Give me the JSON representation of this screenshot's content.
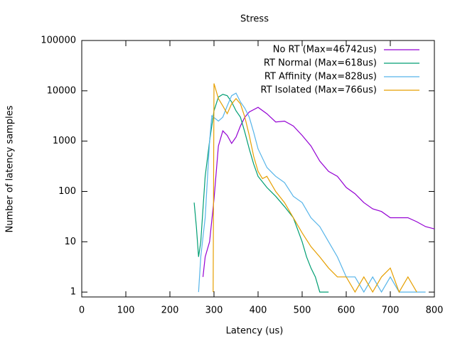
{
  "chart_data": {
    "type": "line",
    "title": "Stress",
    "xlabel": "Latency (us)",
    "ylabel": "Number of latency samples",
    "xlim": [
      0,
      800
    ],
    "xticks": [
      0,
      100,
      200,
      300,
      400,
      500,
      600,
      700,
      800
    ],
    "ylim": [
      0.8,
      100000
    ],
    "yticks": [
      1,
      10,
      100,
      1000,
      10000,
      100000
    ],
    "log_y": true,
    "legend": "top-right",
    "series": [
      {
        "name": "No RT (Max=46742us)",
        "color": "#9400d3",
        "x": [
          275,
          280,
          290,
          300,
          310,
          320,
          330,
          340,
          350,
          360,
          370,
          380,
          400,
          420,
          440,
          460,
          480,
          500,
          520,
          540,
          560,
          580,
          600,
          620,
          640,
          660,
          680,
          700,
          720,
          740,
          760,
          780,
          800
        ],
        "values": [
          2,
          5,
          10,
          70,
          800,
          1600,
          1300,
          900,
          1200,
          2000,
          3000,
          3800,
          4700,
          3500,
          2400,
          2500,
          2000,
          1300,
          800,
          400,
          250,
          200,
          120,
          90,
          60,
          45,
          40,
          30,
          30,
          30,
          25,
          20,
          18
        ]
      },
      {
        "name": "RT Normal (Max=618us)",
        "color": "#009e73",
        "x": [
          255,
          260,
          265,
          270,
          280,
          290,
          300,
          310,
          320,
          330,
          340,
          350,
          360,
          370,
          380,
          390,
          400,
          420,
          440,
          460,
          480,
          500,
          510,
          520,
          530,
          540,
          550,
          560
        ],
        "values": [
          60,
          20,
          5,
          10,
          200,
          1000,
          4000,
          7500,
          8500,
          8000,
          6000,
          4000,
          3000,
          1500,
          700,
          350,
          200,
          120,
          80,
          50,
          30,
          10,
          5,
          3,
          2,
          1,
          1,
          1
        ]
      },
      {
        "name": "RT Affinity (Max=828us)",
        "color": "#56b4e9",
        "x": [
          265,
          270,
          280,
          290,
          295,
          310,
          320,
          330,
          340,
          350,
          360,
          370,
          380,
          390,
          400,
          420,
          440,
          460,
          480,
          500,
          520,
          540,
          560,
          580,
          600,
          620,
          640,
          660,
          680,
          700,
          720,
          740,
          760,
          780
        ],
        "values": [
          1,
          5,
          30,
          1000,
          3200,
          2500,
          3000,
          5000,
          8000,
          9000,
          6000,
          4500,
          3000,
          1500,
          700,
          300,
          200,
          150,
          80,
          60,
          30,
          20,
          10,
          5,
          2,
          2,
          1,
          2,
          1,
          2,
          1,
          1,
          1,
          1
        ]
      },
      {
        "name": "RT Isolated (Max=766us)",
        "color": "#e69f00",
        "x": [
          298,
          300,
          310,
          320,
          330,
          340,
          350,
          360,
          370,
          380,
          390,
          400,
          410,
          420,
          440,
          460,
          480,
          500,
          520,
          540,
          560,
          580,
          600,
          620,
          640,
          660,
          680,
          700,
          720,
          740,
          760
        ],
        "values": [
          1,
          14000,
          7000,
          5000,
          3500,
          5500,
          7000,
          5500,
          3000,
          1300,
          500,
          250,
          180,
          200,
          100,
          60,
          30,
          15,
          8,
          5,
          3,
          2,
          2,
          1,
          2,
          1,
          2,
          3,
          1,
          2,
          1
        ]
      }
    ]
  }
}
